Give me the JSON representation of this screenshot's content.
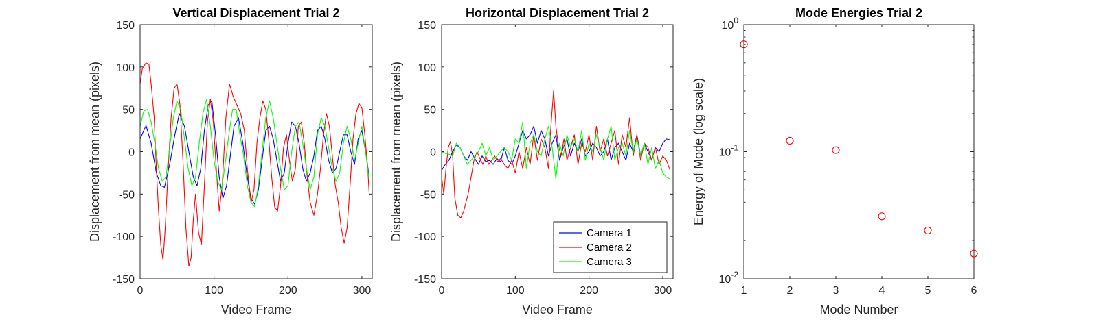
{
  "chart_data": [
    {
      "type": "line",
      "title": "Vertical Displacement Trial 2",
      "xlabel": "Video Frame",
      "ylabel": "Displacement from mean (pixels)",
      "xlim": [
        0,
        314
      ],
      "ylim": [
        -150,
        150
      ],
      "xticks": [
        0,
        100,
        200,
        300
      ],
      "yticks": [
        -150,
        -100,
        -50,
        0,
        50,
        100,
        150
      ],
      "grid": false,
      "series": [
        {
          "name": "Camera 1",
          "color": "#0000ff",
          "x": [
            0,
            8,
            15,
            22,
            28,
            33,
            40,
            47,
            53,
            60,
            67,
            72,
            77,
            82,
            87,
            92,
            97,
            102,
            107,
            112,
            117,
            122,
            127,
            133,
            139,
            145,
            150,
            155,
            160,
            165,
            170,
            175,
            180,
            185,
            190,
            195,
            200,
            205,
            210,
            215,
            220,
            225,
            230,
            235,
            240,
            245,
            250,
            255,
            260,
            265,
            270,
            275,
            280,
            285,
            290,
            295,
            300,
            305,
            310
          ],
          "y": [
            15,
            31,
            10,
            -25,
            -40,
            -42,
            -15,
            20,
            45,
            30,
            -5,
            -30,
            -40,
            -20,
            25,
            55,
            60,
            20,
            -30,
            -55,
            -40,
            -5,
            30,
            40,
            10,
            -30,
            -55,
            -62,
            -45,
            -10,
            25,
            30,
            15,
            -10,
            -35,
            -25,
            10,
            35,
            30,
            10,
            -20,
            -35,
            -25,
            -5,
            25,
            30,
            15,
            -10,
            -25,
            -20,
            0,
            20,
            20,
            0,
            -15,
            15,
            25,
            0,
            -30
          ]
        },
        {
          "name": "Camera 2",
          "color": "#ff0000",
          "x": [
            0,
            3,
            8,
            12,
            15,
            19,
            22,
            25,
            28,
            31,
            34,
            38,
            42,
            46,
            50,
            54,
            58,
            62,
            66,
            69,
            72,
            75,
            79,
            83,
            87,
            91,
            95,
            99,
            103,
            107,
            111,
            116,
            121,
            126,
            131,
            136,
            141,
            145,
            150,
            154,
            158,
            162,
            166,
            170,
            174,
            178,
            182,
            186,
            190,
            194,
            198,
            202,
            206,
            210,
            214,
            218,
            222,
            226,
            230,
            235,
            240,
            244,
            248,
            252,
            256,
            260,
            264,
            268,
            272,
            276,
            280,
            284,
            288,
            292,
            296,
            300,
            304,
            308,
            310
          ],
          "y": [
            80,
            98,
            105,
            103,
            80,
            40,
            -20,
            -70,
            -110,
            -128,
            -90,
            -20,
            40,
            75,
            80,
            55,
            -10,
            -90,
            -135,
            -125,
            -80,
            -50,
            -95,
            -110,
            -40,
            35,
            62,
            35,
            -20,
            -70,
            -40,
            40,
            80,
            65,
            55,
            45,
            25,
            -20,
            -60,
            -45,
            10,
            40,
            60,
            50,
            15,
            -30,
            -65,
            -70,
            -40,
            5,
            20,
            -10,
            -35,
            -20,
            30,
            35,
            10,
            -30,
            -60,
            -75,
            -50,
            -20,
            20,
            45,
            30,
            -5,
            -40,
            -60,
            -90,
            -108,
            -90,
            -40,
            15,
            45,
            57,
            52,
            20,
            -20,
            -52
          ]
        },
        {
          "name": "Camera 3",
          "color": "#00ff00",
          "x": [
            0,
            5,
            10,
            15,
            20,
            25,
            30,
            35,
            40,
            45,
            50,
            55,
            60,
            65,
            70,
            75,
            80,
            85,
            90,
            95,
            100,
            105,
            110,
            115,
            120,
            125,
            130,
            135,
            140,
            145,
            150,
            155,
            160,
            165,
            170,
            175,
            180,
            185,
            190,
            195,
            200,
            205,
            210,
            215,
            220,
            225,
            230,
            235,
            240,
            245,
            250,
            255,
            260,
            265,
            270,
            275,
            280,
            285,
            290,
            295,
            300,
            305,
            310
          ],
          "y": [
            30,
            48,
            50,
            35,
            10,
            -20,
            -35,
            -30,
            5,
            40,
            60,
            50,
            15,
            -20,
            -40,
            -30,
            10,
            45,
            62,
            30,
            -10,
            -35,
            -45,
            -15,
            20,
            50,
            50,
            20,
            -5,
            -40,
            -60,
            -65,
            -40,
            0,
            40,
            60,
            40,
            10,
            -20,
            -45,
            -40,
            0,
            30,
            35,
            10,
            -20,
            -45,
            -30,
            20,
            40,
            30,
            5,
            -20,
            -35,
            -25,
            10,
            30,
            15,
            -10,
            10,
            30,
            0,
            -35
          ]
        }
      ]
    },
    {
      "type": "line",
      "title": "Horizontal Displacement Trial 2",
      "xlabel": "Video Frame",
      "ylabel": "Displacement from mean (pixels)",
      "xlim": [
        0,
        314
      ],
      "ylim": [
        -150,
        150
      ],
      "xticks": [
        0,
        100,
        200,
        300
      ],
      "yticks": [
        -150,
        -100,
        -50,
        0,
        50,
        100,
        150
      ],
      "grid": false,
      "legend": {
        "location": "bottom-right",
        "entries": [
          "Camera 1",
          "Camera 2",
          "Camera 3"
        ]
      },
      "series": [
        {
          "name": "Camera 1",
          "color": "#0000ff",
          "x": [
            0,
            5,
            10,
            15,
            20,
            25,
            30,
            35,
            40,
            45,
            50,
            55,
            60,
            65,
            70,
            75,
            80,
            85,
            90,
            95,
            100,
            105,
            110,
            115,
            120,
            125,
            130,
            135,
            140,
            145,
            150,
            155,
            160,
            165,
            170,
            175,
            180,
            185,
            190,
            195,
            200,
            205,
            210,
            215,
            220,
            225,
            230,
            235,
            240,
            245,
            250,
            255,
            260,
            265,
            270,
            275,
            280,
            285,
            290,
            295,
            300,
            305,
            310
          ],
          "y": [
            -22,
            -15,
            -10,
            0,
            8,
            5,
            -5,
            -10,
            0,
            -8,
            -15,
            -5,
            -12,
            -10,
            -15,
            -8,
            -12,
            5,
            -10,
            -15,
            -5,
            10,
            25,
            15,
            20,
            30,
            10,
            25,
            15,
            -5,
            10,
            20,
            -10,
            5,
            15,
            -5,
            10,
            0,
            15,
            -5,
            0,
            10,
            5,
            -5,
            0,
            15,
            -10,
            5,
            10,
            0,
            -10,
            10,
            0,
            20,
            -5,
            10,
            0,
            -10,
            5,
            0,
            10,
            15,
            14
          ]
        },
        {
          "name": "Camera 2",
          "color": "#ff0000",
          "x": [
            0,
            3,
            6,
            9,
            12,
            15,
            18,
            22,
            26,
            30,
            33,
            36,
            40,
            44,
            48,
            52,
            56,
            60,
            64,
            68,
            72,
            76,
            80,
            85,
            90,
            95,
            100,
            105,
            110,
            115,
            120,
            125,
            130,
            135,
            140,
            145,
            148,
            150,
            152,
            155,
            158,
            162,
            166,
            170,
            175,
            180,
            185,
            190,
            195,
            200,
            205,
            210,
            215,
            220,
            225,
            230,
            235,
            240,
            245,
            250,
            255,
            260,
            265,
            270,
            275,
            280,
            285,
            290,
            295,
            300,
            305,
            310
          ],
          "y": [
            -30,
            -50,
            -20,
            5,
            12,
            -5,
            -55,
            -75,
            -78,
            -70,
            -60,
            -50,
            -30,
            -10,
            0,
            -8,
            -15,
            -5,
            -15,
            -10,
            -5,
            -12,
            -8,
            -15,
            -20,
            -10,
            -25,
            0,
            -20,
            5,
            -15,
            20,
            -10,
            15,
            5,
            -20,
            25,
            50,
            72,
            30,
            10,
            -5,
            15,
            -10,
            5,
            20,
            -15,
            10,
            0,
            20,
            -10,
            30,
            0,
            15,
            -5,
            10,
            25,
            -15,
            20,
            5,
            40,
            -5,
            20,
            -10,
            10,
            5,
            -10,
            5,
            -15,
            -5,
            -10,
            -22
          ]
        },
        {
          "name": "Camera 3",
          "color": "#00ff00",
          "x": [
            0,
            5,
            10,
            15,
            20,
            25,
            30,
            35,
            40,
            45,
            50,
            55,
            60,
            65,
            70,
            75,
            80,
            85,
            90,
            95,
            100,
            105,
            110,
            115,
            120,
            125,
            130,
            135,
            140,
            145,
            150,
            155,
            160,
            165,
            170,
            175,
            180,
            185,
            190,
            195,
            200,
            205,
            210,
            215,
            220,
            225,
            230,
            235,
            240,
            245,
            250,
            255,
            260,
            265,
            270,
            275,
            280,
            285,
            290,
            295,
            300,
            305,
            310
          ],
          "y": [
            0,
            -2,
            -3,
            -5,
            10,
            5,
            -5,
            -15,
            -10,
            -5,
            0,
            10,
            -5,
            5,
            -10,
            -5,
            0,
            5,
            0,
            -10,
            15,
            10,
            35,
            -20,
            10,
            20,
            0,
            -5,
            15,
            30,
            5,
            -32,
            10,
            -5,
            20,
            5,
            15,
            0,
            25,
            -10,
            10,
            0,
            20,
            5,
            -10,
            15,
            30,
            -10,
            5,
            10,
            -5,
            25,
            0,
            15,
            -5,
            10,
            -15,
            5,
            -20,
            -10,
            -25,
            -30,
            -32
          ]
        }
      ]
    },
    {
      "type": "scatter",
      "title": "Mode Energies Trial 2",
      "xlabel": "Mode Number",
      "ylabel": "Energy of Mode (log scale)",
      "yscale": "log",
      "xlim": [
        1,
        6
      ],
      "ylim": [
        0.01,
        1
      ],
      "xticks": [
        1,
        2,
        3,
        4,
        5,
        6
      ],
      "yticks": [
        1,
        0.1,
        0.01
      ],
      "ytick_labels": [
        {
          "base": "10",
          "exp": "0"
        },
        {
          "base": "10",
          "exp": "-1"
        },
        {
          "base": "10",
          "exp": "-2"
        }
      ],
      "grid": false,
      "marker": "circle",
      "color": "#ff0000",
      "x": [
        1,
        2,
        3,
        4,
        5,
        6
      ],
      "y": [
        0.7,
        0.122,
        0.103,
        0.031,
        0.024,
        0.0158
      ]
    }
  ]
}
